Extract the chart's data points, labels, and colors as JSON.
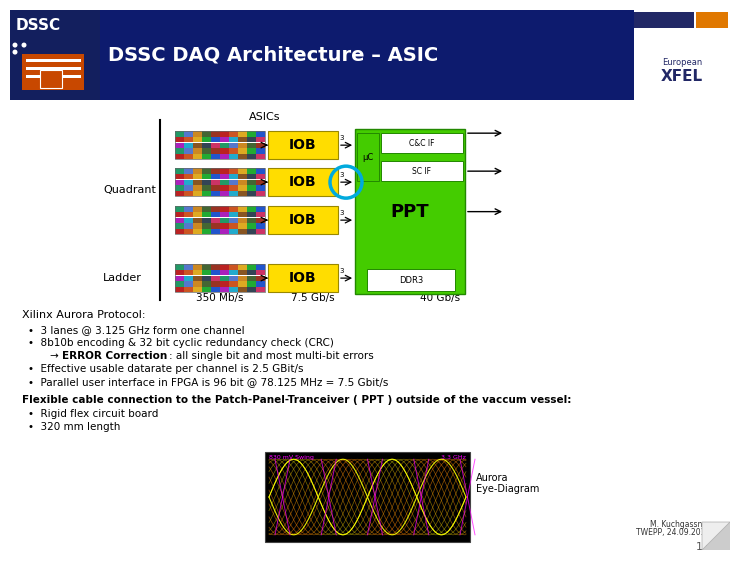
{
  "title": "DSSC DAQ Architecture – ASIC",
  "header_bg": "#0d1b6e",
  "slide_bg": "#ffffff",
  "iob_color": "#ffdd00",
  "ppt_color": "#44cc00",
  "ppt_label": "PPT",
  "speed_labels": [
    "350 Mb/s",
    "7.5 Gb/s",
    "40 Gb/s"
  ],
  "iob_label": "IOB",
  "uc_label": "μC",
  "ccc_if_label": "C&C IF",
  "sc_if_label": "SC IF",
  "ddr3_label": "DDR3",
  "circle_color": "#00aadd",
  "section_header": "Xilinx Aurora Protocol:",
  "flex_header": "Flexible cable connection to the Patch-Panel-Tranceiver ( PPT ) outside of the vaccum vessel:",
  "flex_bullets": [
    "Rigid flex circuit board",
    "320 mm length"
  ],
  "eye_label": "Aurora\nEye-Diagram",
  "footer_name": "M. Kuchgassner",
  "footer_conf": "TWEPP, 24.09.2014",
  "page_number": "15"
}
